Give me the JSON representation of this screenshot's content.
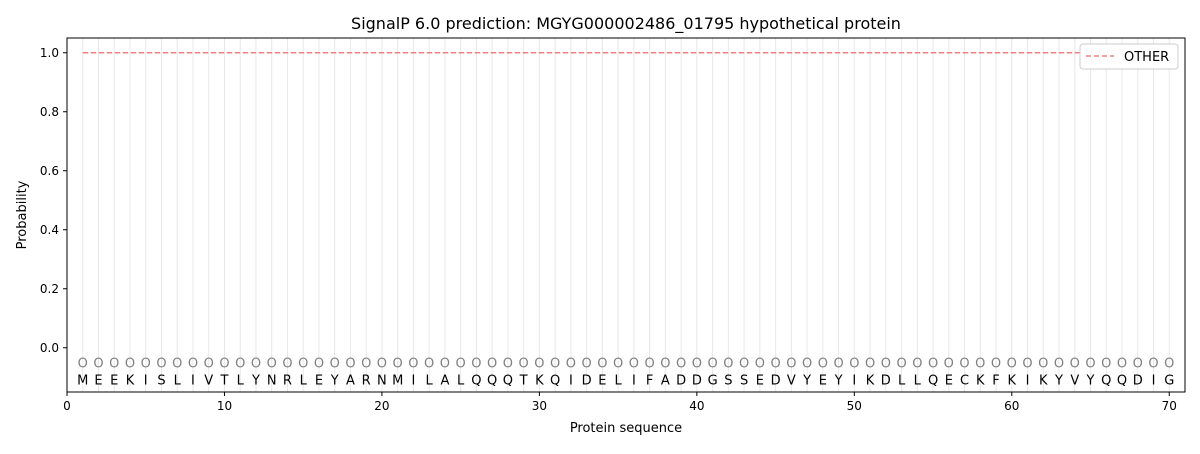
{
  "chart_data": {
    "type": "line",
    "title": "SignalP 6.0 prediction: MGYG000002486_01795 hypothetical protein",
    "xlabel": "Protein sequence",
    "ylabel": "Probability",
    "xlim": [
      0,
      71
    ],
    "ylim": [
      -0.15,
      1.05
    ],
    "xticks": [
      0,
      10,
      20,
      30,
      40,
      50,
      60,
      70
    ],
    "yticks": [
      0.0,
      0.2,
      0.4,
      0.6,
      0.8,
      1.0
    ],
    "ytick_labels": [
      "0.0",
      "0.2",
      "0.4",
      "0.6",
      "0.8",
      "1.0"
    ],
    "legend_position": "top-right",
    "sequence": [
      "M",
      "E",
      "E",
      "K",
      "I",
      "S",
      "L",
      "I",
      "V",
      "T",
      "L",
      "Y",
      "N",
      "R",
      "L",
      "E",
      "Y",
      "A",
      "R",
      "N",
      "M",
      "I",
      "L",
      "A",
      "L",
      "Q",
      "Q",
      "Q",
      "T",
      "K",
      "Q",
      "I",
      "D",
      "E",
      "L",
      "I",
      "F",
      "A",
      "D",
      "D",
      "G",
      "S",
      "S",
      "E",
      "D",
      "V",
      "Y",
      "E",
      "Y",
      "I",
      "K",
      "D",
      "L",
      "L",
      "Q",
      "E",
      "C",
      "K",
      "F",
      "K",
      "I",
      "K",
      "Y",
      "V",
      "Y",
      "Q",
      "Q",
      "D",
      "I",
      "G"
    ],
    "region_marker": "O",
    "series": [
      {
        "name": "OTHER",
        "color": "#f08080",
        "style": "dashed",
        "x_range": [
          1,
          70
        ],
        "value": 1.0
      }
    ],
    "colors": {
      "grid": "#e8e8e8",
      "marker": "#808080"
    }
  }
}
